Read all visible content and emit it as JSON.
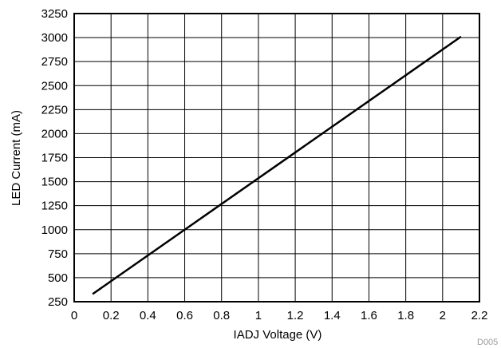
{
  "chart_data": {
    "type": "line",
    "xlabel": "IADJ Voltage (V)",
    "ylabel": "LED Current (mA)",
    "xlim": [
      0,
      2.2
    ],
    "ylim": [
      250,
      3250
    ],
    "x_ticks": [
      "0",
      "0.2",
      "0.4",
      "0.6",
      "0.8",
      "1",
      "1.2",
      "1.4",
      "1.6",
      "1.8",
      "2",
      "2.2"
    ],
    "y_ticks": [
      "250",
      "500",
      "750",
      "1000",
      "1250",
      "1500",
      "1750",
      "2000",
      "2250",
      "2500",
      "2750",
      "3000",
      "3250"
    ],
    "grid": true,
    "series": [
      {
        "x": [
          0.1,
          2.1
        ],
        "y": [
          330,
          3010
        ]
      }
    ],
    "figure_code": "D005"
  },
  "colors": {
    "line": "#000000",
    "grid": "#000000",
    "background": "#ffffff"
  }
}
